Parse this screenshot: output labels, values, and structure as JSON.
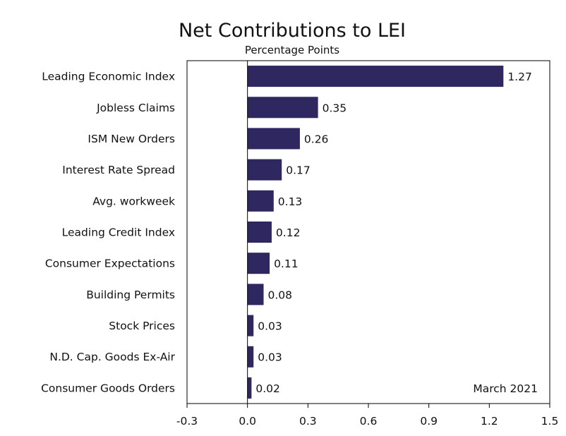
{
  "chart_data": {
    "type": "bar",
    "orientation": "horizontal",
    "title": "Net Contributions to LEI",
    "subtitle": "Percentage Points",
    "annotation": "March 2021",
    "categories": [
      "Leading Economic Index",
      "Jobless Claims",
      "ISM New Orders",
      "Interest Rate Spread",
      "Avg. workweek",
      "Leading Credit Index",
      "Consumer Expectations",
      "Building Permits",
      "Stock Prices",
      "N.D. Cap. Goods Ex-Air",
      "Consumer Goods Orders"
    ],
    "values": [
      1.27,
      0.35,
      0.26,
      0.17,
      0.13,
      0.12,
      0.11,
      0.08,
      0.03,
      0.03,
      0.02
    ],
    "value_labels": [
      "1.27",
      "0.35",
      "0.26",
      "0.17",
      "0.13",
      "0.12",
      "0.11",
      "0.08",
      "0.03",
      "0.03",
      "0.02"
    ],
    "xlim": [
      -0.3,
      1.5
    ],
    "xticks": [
      -0.3,
      0.0,
      0.3,
      0.6,
      0.9,
      1.2,
      1.5
    ],
    "xtick_labels": [
      "-0.3",
      "0.0",
      "0.3",
      "0.6",
      "0.9",
      "1.2",
      "1.5"
    ],
    "grid": false,
    "bar_color": "#2e2760"
  }
}
